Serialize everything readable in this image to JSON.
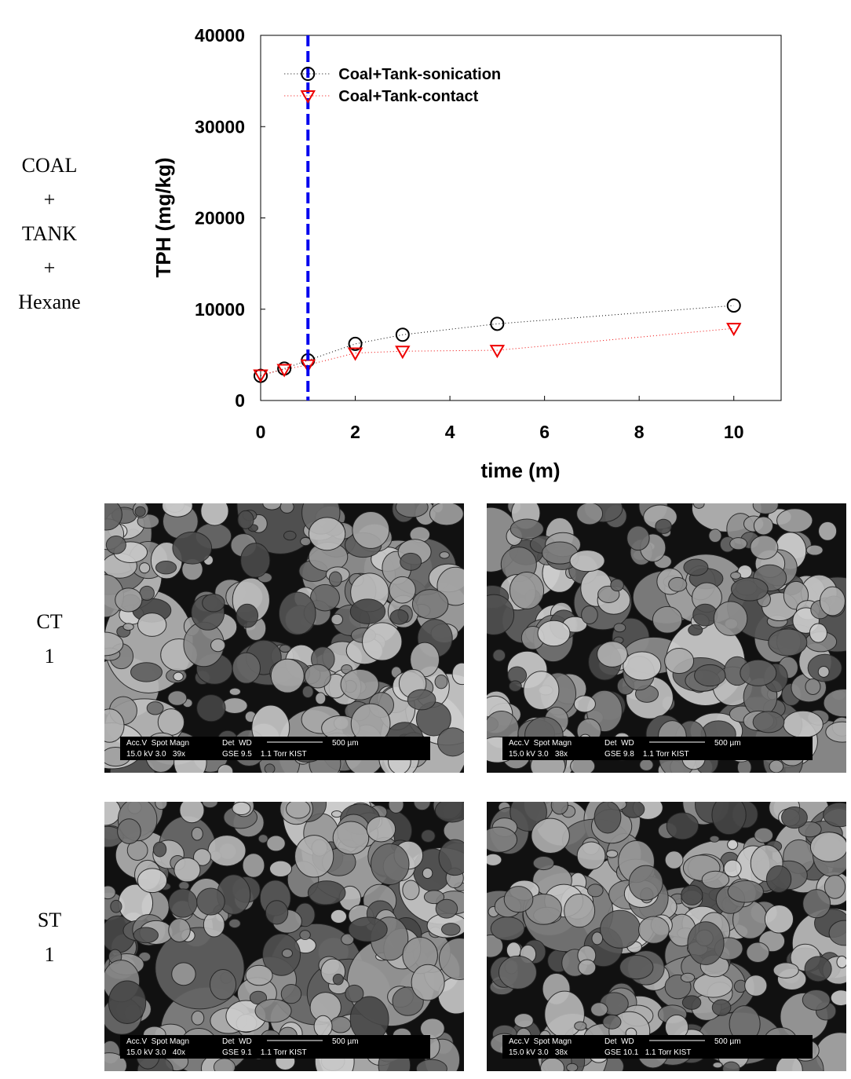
{
  "chart_data": {
    "type": "line",
    "xlabel": "time (m)",
    "ylabel": "TPH (mg/kg)",
    "xlim": [
      0,
      11
    ],
    "xticks": [
      0,
      2,
      4,
      6,
      8,
      10
    ],
    "ylim": [
      0,
      40000
    ],
    "yticks": [
      0,
      10000,
      20000,
      30000,
      40000
    ],
    "legend": "upper-left",
    "reference_line": {
      "x": 1,
      "color": "#0000ee"
    },
    "series": [
      {
        "name": "Coal+Tank-sonication",
        "color": "#000000",
        "marker": "circle",
        "x": [
          0,
          0.5,
          1,
          2,
          3,
          5,
          10
        ],
        "values": [
          2700,
          3500,
          4400,
          6200,
          7200,
          8400,
          10400
        ]
      },
      {
        "name": "Coal+Tank-contact",
        "color": "#ee0000",
        "marker": "triangle-down",
        "x": [
          0,
          0.5,
          1,
          2,
          3,
          5,
          10
        ],
        "values": [
          2800,
          3400,
          3900,
          5200,
          5400,
          5500,
          7900
        ]
      }
    ]
  },
  "side_label": [
    "COAL",
    "+",
    "TANK",
    "+",
    "Hexane"
  ],
  "panels": [
    {
      "label": [
        "CT",
        "1"
      ],
      "images": [
        {
          "line1": "Acc.V  Spot Magn",
          "line1b": "Det  WD",
          "scale": "500 µm",
          "line2": "15.0 kV 3.0   39x",
          "line2b": "GSE 9.5    1.1 Torr KIST"
        },
        {
          "line1": "Acc.V  Spot Magn",
          "line1b": "Det  WD",
          "scale": "500 µm",
          "line2": "15.0 kV 3.0   38x",
          "line2b": "GSE 9.8    1.1 Torr KIST"
        }
      ]
    },
    {
      "label": [
        "ST",
        "1"
      ],
      "images": [
        {
          "line1": "Acc.V  Spot Magn",
          "line1b": "Det  WD",
          "scale": "500 µm",
          "line2": "15.0 kV 3.0   40x",
          "line2b": "GSE 9.1    1.1 Torr KIST"
        },
        {
          "line1": "Acc.V  Spot Magn",
          "line1b": "Det  WD",
          "scale": "500 µm",
          "line2": "15.0 kV 3.0   38x",
          "line2b": "GSE 10.1   1.1 Torr KIST"
        }
      ]
    }
  ]
}
